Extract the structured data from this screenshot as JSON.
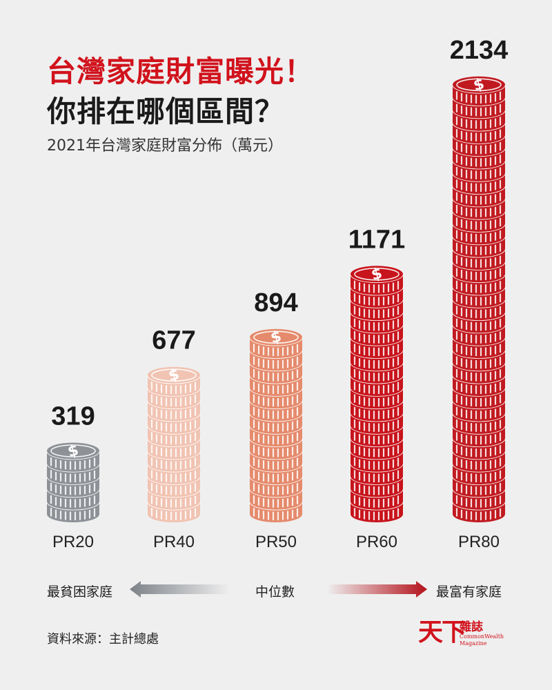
{
  "header": {
    "title_line1": "台灣家庭財富曝光！",
    "title_line2": "你排在哪個區間？",
    "subtitle": "2021年台灣家庭財富分佈（萬元）"
  },
  "legend": {
    "left_label": "最貧困家庭",
    "middle_label": "中位數",
    "right_label": "最富有家庭"
  },
  "footer": {
    "source": "資料來源：主計總處",
    "logo_text": "天下",
    "logo_small": "雜誌",
    "logo_en1": "CommonWealth",
    "logo_en2": "Magazine"
  },
  "colors": {
    "background": "#efefef",
    "title_red": "#d1121c",
    "PR20": "#8e9297",
    "PR40": "#f1c3b2",
    "PR50": "#e58a6c",
    "PR60": "#c8141c",
    "PR80": "#c01a20"
  },
  "chart_data": {
    "type": "bar",
    "title": "2021年台灣家庭財富分佈（萬元）",
    "categories": [
      "PR20",
      "PR40",
      "PR50",
      "PR60",
      "PR80"
    ],
    "values": [
      319,
      677,
      894,
      1171,
      2134
    ],
    "value_labels": [
      "319",
      "677",
      "894",
      "1171",
      "2134"
    ],
    "unit": "萬元",
    "style": "stacked coins",
    "grid": false
  }
}
